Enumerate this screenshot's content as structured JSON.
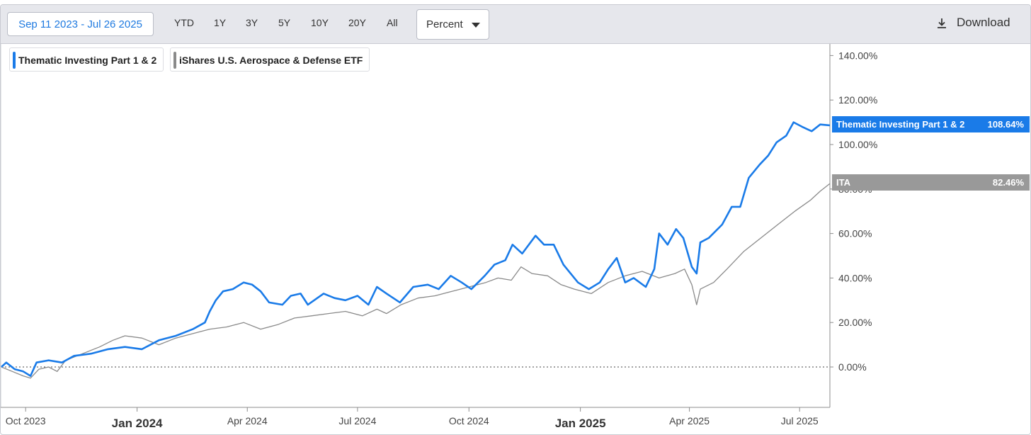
{
  "toolbar": {
    "date_range": "Sep 11 2023 - Jul 26 2025",
    "ranges": [
      "YTD",
      "1Y",
      "3Y",
      "5Y",
      "10Y",
      "20Y",
      "All"
    ],
    "unit": "Percent",
    "download_label": "Download"
  },
  "legend": [
    {
      "label": "Thematic Investing Part 1 & 2",
      "color": "#1a7be8"
    },
    {
      "label": "iShares U.S. Aerospace & Defense ETF",
      "color": "#8a8a8a"
    }
  ],
  "last_value_tags": [
    {
      "name": "Thematic Investing Part 1 & 2",
      "value": "108.64%",
      "color": "#1a7be8"
    },
    {
      "name": "ITA",
      "value": "82.46%",
      "color": "#999999"
    }
  ],
  "chart_data": {
    "type": "line",
    "x_range": [
      "2023-09-11",
      "2025-07-26"
    ],
    "ylim": [
      -18,
      140
    ],
    "y_ticks": [
      0,
      20,
      40,
      60,
      80,
      100,
      120,
      140
    ],
    "y_tick_labels": [
      "0.00%",
      "20.00%",
      "40.00%",
      "60.00%",
      "80.00%",
      "100.00%",
      "120.00%",
      "140.00%"
    ],
    "x_ticks": [
      {
        "date": "2023-10-01",
        "label": "Oct 2023",
        "bold": false
      },
      {
        "date": "2024-01-01",
        "label": "Jan 2024",
        "bold": true
      },
      {
        "date": "2024-04-01",
        "label": "Apr 2024",
        "bold": false
      },
      {
        "date": "2024-07-01",
        "label": "Jul 2024",
        "bold": false
      },
      {
        "date": "2024-10-01",
        "label": "Oct 2024",
        "bold": false
      },
      {
        "date": "2025-01-01",
        "label": "Jan 2025",
        "bold": true
      },
      {
        "date": "2025-04-01",
        "label": "Apr 2025",
        "bold": false
      },
      {
        "date": "2025-07-01",
        "label": "Jul 2025",
        "bold": false
      }
    ],
    "zero_line": "dotted",
    "legend_position": "top-left",
    "series": [
      {
        "name": "Thematic Investing Part 1 & 2",
        "color": "#1a7be8",
        "points": [
          [
            "2023-09-11",
            0
          ],
          [
            "2023-09-15",
            2
          ],
          [
            "2023-09-22",
            -1
          ],
          [
            "2023-09-29",
            -2
          ],
          [
            "2023-10-05",
            -4
          ],
          [
            "2023-10-10",
            2
          ],
          [
            "2023-10-20",
            3
          ],
          [
            "2023-10-31",
            2
          ],
          [
            "2023-11-10",
            5
          ],
          [
            "2023-11-24",
            6
          ],
          [
            "2023-12-08",
            8
          ],
          [
            "2023-12-22",
            9
          ],
          [
            "2024-01-05",
            8
          ],
          [
            "2024-01-19",
            12
          ],
          [
            "2024-02-02",
            14
          ],
          [
            "2024-02-16",
            17
          ],
          [
            "2024-02-26",
            20
          ],
          [
            "2024-03-01",
            25
          ],
          [
            "2024-03-06",
            30
          ],
          [
            "2024-03-12",
            34
          ],
          [
            "2024-03-20",
            35
          ],
          [
            "2024-03-29",
            38
          ],
          [
            "2024-04-05",
            37
          ],
          [
            "2024-04-12",
            34
          ],
          [
            "2024-04-19",
            29
          ],
          [
            "2024-04-30",
            28
          ],
          [
            "2024-05-07",
            32
          ],
          [
            "2024-05-15",
            33
          ],
          [
            "2024-05-21",
            28
          ],
          [
            "2024-06-03",
            33
          ],
          [
            "2024-06-12",
            31
          ],
          [
            "2024-06-21",
            30
          ],
          [
            "2024-07-01",
            32
          ],
          [
            "2024-07-10",
            28
          ],
          [
            "2024-07-17",
            36
          ],
          [
            "2024-07-25",
            33
          ],
          [
            "2024-08-05",
            29
          ],
          [
            "2024-08-16",
            36
          ],
          [
            "2024-08-28",
            37
          ],
          [
            "2024-09-06",
            35
          ],
          [
            "2024-09-16",
            41
          ],
          [
            "2024-09-25",
            38
          ],
          [
            "2024-10-03",
            35
          ],
          [
            "2024-10-14",
            41
          ],
          [
            "2024-10-22",
            46
          ],
          [
            "2024-10-31",
            48
          ],
          [
            "2024-11-06",
            55
          ],
          [
            "2024-11-14",
            51
          ],
          [
            "2024-11-25",
            59
          ],
          [
            "2024-12-02",
            55
          ],
          [
            "2024-12-10",
            55
          ],
          [
            "2024-12-18",
            46
          ],
          [
            "2024-12-30",
            38
          ],
          [
            "2025-01-08",
            35
          ],
          [
            "2025-01-17",
            38
          ],
          [
            "2025-01-24",
            44
          ],
          [
            "2025-01-31",
            49
          ],
          [
            "2025-02-07",
            38
          ],
          [
            "2025-02-14",
            40
          ],
          [
            "2025-02-24",
            36
          ],
          [
            "2025-03-03",
            44
          ],
          [
            "2025-03-07",
            60
          ],
          [
            "2025-03-14",
            55
          ],
          [
            "2025-03-21",
            62
          ],
          [
            "2025-03-27",
            58
          ],
          [
            "2025-04-03",
            45
          ],
          [
            "2025-04-07",
            42
          ],
          [
            "2025-04-10",
            56
          ],
          [
            "2025-04-17",
            58
          ],
          [
            "2025-04-28",
            64
          ],
          [
            "2025-05-06",
            72
          ],
          [
            "2025-05-13",
            72
          ],
          [
            "2025-05-20",
            85
          ],
          [
            "2025-05-29",
            91
          ],
          [
            "2025-06-05",
            95
          ],
          [
            "2025-06-12",
            101
          ],
          [
            "2025-06-20",
            104
          ],
          [
            "2025-06-26",
            110
          ],
          [
            "2025-07-03",
            108
          ],
          [
            "2025-07-11",
            106
          ],
          [
            "2025-07-18",
            109
          ],
          [
            "2025-07-26",
            108.64
          ]
        ]
      },
      {
        "name": "ITA",
        "color": "#8a8a8a",
        "points": [
          [
            "2023-09-11",
            0
          ],
          [
            "2023-09-20",
            -2
          ],
          [
            "2023-09-29",
            -4
          ],
          [
            "2023-10-05",
            -5
          ],
          [
            "2023-10-12",
            -1
          ],
          [
            "2023-10-20",
            0
          ],
          [
            "2023-10-27",
            -2
          ],
          [
            "2023-11-03",
            3
          ],
          [
            "2023-11-17",
            6
          ],
          [
            "2023-12-01",
            9
          ],
          [
            "2023-12-12",
            12
          ],
          [
            "2023-12-22",
            14
          ],
          [
            "2024-01-05",
            13
          ],
          [
            "2024-01-19",
            10
          ],
          [
            "2024-02-02",
            13
          ],
          [
            "2024-02-16",
            15
          ],
          [
            "2024-03-01",
            17
          ],
          [
            "2024-03-15",
            18
          ],
          [
            "2024-03-29",
            20
          ],
          [
            "2024-04-12",
            17
          ],
          [
            "2024-04-26",
            19
          ],
          [
            "2024-05-10",
            22
          ],
          [
            "2024-05-24",
            23
          ],
          [
            "2024-06-07",
            24
          ],
          [
            "2024-06-21",
            25
          ],
          [
            "2024-07-05",
            23
          ],
          [
            "2024-07-17",
            26
          ],
          [
            "2024-07-25",
            24
          ],
          [
            "2024-08-06",
            28
          ],
          [
            "2024-08-20",
            31
          ],
          [
            "2024-09-03",
            32
          ],
          [
            "2024-09-17",
            34
          ],
          [
            "2024-10-01",
            36
          ],
          [
            "2024-10-15",
            38
          ],
          [
            "2024-10-25",
            40
          ],
          [
            "2024-11-05",
            39
          ],
          [
            "2024-11-13",
            45
          ],
          [
            "2024-11-22",
            42
          ],
          [
            "2024-12-05",
            41
          ],
          [
            "2024-12-16",
            37
          ],
          [
            "2024-12-27",
            35
          ],
          [
            "2025-01-10",
            33
          ],
          [
            "2025-01-24",
            38
          ],
          [
            "2025-02-07",
            41
          ],
          [
            "2025-02-21",
            43
          ],
          [
            "2025-03-07",
            40
          ],
          [
            "2025-03-20",
            42
          ],
          [
            "2025-03-28",
            44
          ],
          [
            "2025-04-03",
            37
          ],
          [
            "2025-04-07",
            28
          ],
          [
            "2025-04-10",
            35
          ],
          [
            "2025-04-21",
            38
          ],
          [
            "2025-05-02",
            44
          ],
          [
            "2025-05-16",
            52
          ],
          [
            "2025-05-30",
            58
          ],
          [
            "2025-06-13",
            64
          ],
          [
            "2025-06-27",
            70
          ],
          [
            "2025-07-10",
            75
          ],
          [
            "2025-07-18",
            79
          ],
          [
            "2025-07-26",
            82.46
          ]
        ]
      }
    ]
  }
}
